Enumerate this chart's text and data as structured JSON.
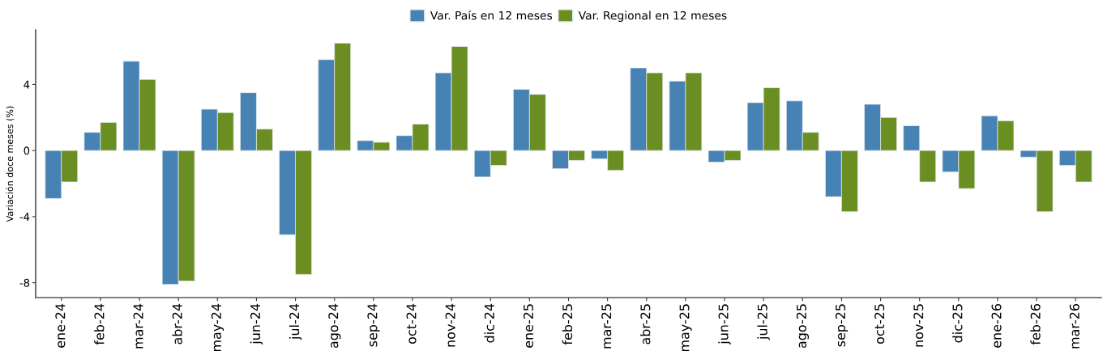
{
  "chart_data": {
    "type": "bar",
    "ylabel": "Variación doce meses (%)",
    "categories": [
      "ene-24",
      "feb-24",
      "mar-24",
      "abr-24",
      "may-24",
      "jun-24",
      "jul-24",
      "ago-24",
      "sep-24",
      "oct-24",
      "nov-24",
      "dic-24",
      "ene-25",
      "feb-25",
      "mar-25",
      "abr-25",
      "may-25",
      "jun-25",
      "jul-25",
      "ago-25",
      "sep-25",
      "oct-25",
      "nov-25",
      "dic-25",
      "ene-26",
      "feb-26",
      "mar-26"
    ],
    "series": [
      {
        "name": "Var. País en 12 meses",
        "color": "#4682b4",
        "values": [
          -2.9,
          1.1,
          5.4,
          -8.1,
          2.5,
          3.5,
          -5.1,
          5.5,
          0.6,
          0.9,
          4.7,
          -1.6,
          3.7,
          -1.1,
          -0.5,
          5.0,
          4.2,
          -0.7,
          2.9,
          3.0,
          -2.8,
          2.8,
          1.5,
          -1.3,
          2.1,
          -0.4,
          -0.9
        ]
      },
      {
        "name": "Var. Regional en 12 meses",
        "color": "#6b8e23",
        "values": [
          -1.9,
          1.7,
          4.3,
          -7.9,
          2.3,
          1.3,
          -7.5,
          6.5,
          0.5,
          1.6,
          6.3,
          -0.9,
          3.4,
          -0.6,
          -1.2,
          4.7,
          4.7,
          -0.6,
          3.8,
          1.1,
          -3.7,
          2.0,
          -1.9,
          -2.3,
          1.8,
          -3.7,
          -1.9
        ]
      }
    ],
    "ylim": [
      -8.9,
      7.3
    ],
    "yticks": [
      -8,
      -4,
      0,
      4
    ],
    "grid": false,
    "legend": "top"
  }
}
